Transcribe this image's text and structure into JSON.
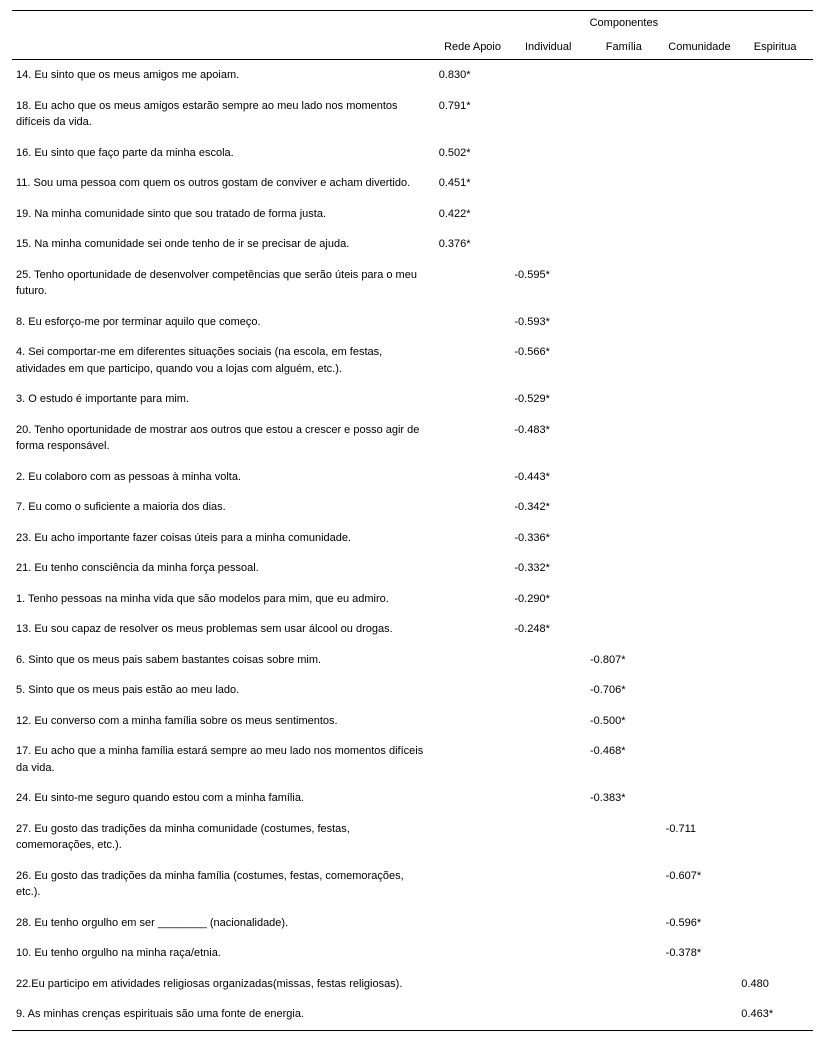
{
  "header": {
    "group_label": "Componentes",
    "columns": [
      "Rede Apoio",
      "Individual",
      "Família",
      "Comunidade",
      "Espiritua"
    ]
  },
  "rows": [
    {
      "item": "14. Eu sinto que os meus amigos me apoiam.",
      "c0": "0.830*",
      "c1": "",
      "c2": "",
      "c3": "",
      "c4": ""
    },
    {
      "item": "18. Eu acho que os meus amigos estarão sempre ao meu lado nos momentos difíceis da vida.",
      "c0": "0.791*",
      "c1": "",
      "c2": "",
      "c3": "",
      "c4": ""
    },
    {
      "item": "16. Eu sinto que faço parte da minha escola.",
      "c0": "0.502*",
      "c1": "",
      "c2": "",
      "c3": "",
      "c4": ""
    },
    {
      "item": "11. Sou uma pessoa com quem os outros gostam de conviver e acham divertido.",
      "c0": "0.451*",
      "c1": "",
      "c2": "",
      "c3": "",
      "c4": ""
    },
    {
      "item": "19. Na minha comunidade sinto que sou tratado de forma justa.",
      "c0": "0.422*",
      "c1": "",
      "c2": "",
      "c3": "",
      "c4": ""
    },
    {
      "item": "15. Na minha comunidade sei onde tenho de ir se precisar de ajuda.",
      "c0": "0.376*",
      "c1": "",
      "c2": "",
      "c3": "",
      "c4": ""
    },
    {
      "item": "25. Tenho oportunidade de desenvolver competências que serão úteis para o meu futuro.",
      "c0": "",
      "c1": "-0.595*",
      "c2": "",
      "c3": "",
      "c4": ""
    },
    {
      "item": "8. Eu esforço-me por terminar aquilo que começo.",
      "c0": "",
      "c1": "-0.593*",
      "c2": "",
      "c3": "",
      "c4": ""
    },
    {
      "item": "4. Sei comportar-me em diferentes situações sociais (na escola, em festas, atividades em que participo, quando vou a lojas com alguém, etc.).",
      "c0": "",
      "c1": "-0.566*",
      "c2": "",
      "c3": "",
      "c4": ""
    },
    {
      "item": "3. O estudo é importante para mim.",
      "c0": "",
      "c1": "-0.529*",
      "c2": "",
      "c3": "",
      "c4": ""
    },
    {
      "item": "20. Tenho oportunidade de mostrar aos outros que estou a crescer e posso agir de forma responsável.",
      "c0": "",
      "c1": "-0.483*",
      "c2": "",
      "c3": "",
      "c4": ""
    },
    {
      "item": "2. Eu colaboro com as pessoas à minha volta.",
      "c0": "",
      "c1": "-0.443*",
      "c2": "",
      "c3": "",
      "c4": ""
    },
    {
      "item": "7. Eu como o suficiente a maioria dos dias.",
      "c0": "",
      "c1": "-0.342*",
      "c2": "",
      "c3": "",
      "c4": ""
    },
    {
      "item": "23. Eu acho importante fazer coisas úteis para a minha comunidade.",
      "c0": "",
      "c1": "-0.336*",
      "c2": "",
      "c3": "",
      "c4": ""
    },
    {
      "item": "21. Eu tenho consciência da minha força pessoal.",
      "c0": "",
      "c1": "-0.332*",
      "c2": "",
      "c3": "",
      "c4": ""
    },
    {
      "item": "1. Tenho pessoas na minha vida que são modelos para mim, que eu admiro.",
      "c0": "",
      "c1": "-0.290*",
      "c2": "",
      "c3": "",
      "c4": ""
    },
    {
      "item": "13. Eu sou capaz de resolver os meus problemas sem usar álcool ou drogas.",
      "c0": "",
      "c1": "-0.248*",
      "c2": "",
      "c3": "",
      "c4": ""
    },
    {
      "item": "6. Sinto que os meus pais sabem bastantes coisas sobre mim.",
      "c0": "",
      "c1": "",
      "c2": "-0.807*",
      "c3": "",
      "c4": ""
    },
    {
      "item": "5. Sinto que os meus pais estão ao meu lado.",
      "c0": "",
      "c1": "",
      "c2": "-0.706*",
      "c3": "",
      "c4": ""
    },
    {
      "item": "12. Eu converso com a minha família sobre os meus sentimentos.",
      "c0": "",
      "c1": "",
      "c2": "-0.500*",
      "c3": "",
      "c4": ""
    },
    {
      "item": "17. Eu acho que a minha família estará sempre ao meu lado nos momentos difíceis da vida.",
      "c0": "",
      "c1": "",
      "c2": "-0.468*",
      "c3": "",
      "c4": ""
    },
    {
      "item": "24. Eu sinto-me seguro quando estou com a minha família.",
      "c0": "",
      "c1": "",
      "c2": "-0.383*",
      "c3": "",
      "c4": ""
    },
    {
      "item": "27. Eu gosto das tradições da minha comunidade (costumes, festas, comemorações, etc.).",
      "c0": "",
      "c1": "",
      "c2": "",
      "c3": "-0.711",
      "c4": ""
    },
    {
      "item": "26.  Eu gosto das tradições da minha família (costumes, festas, comemorações, etc.).",
      "c0": "",
      "c1": "",
      "c2": "",
      "c3": "-0.607*",
      "c4": ""
    },
    {
      "item": "28. Eu tenho orgulho em ser ________ (nacionalidade).",
      "c0": "",
      "c1": "",
      "c2": "",
      "c3": "-0.596*",
      "c4": ""
    },
    {
      "item": "10. Eu tenho orgulho na minha raça/etnia.",
      "c0": "",
      "c1": "",
      "c2": "",
      "c3": "-0.378*",
      "c4": ""
    },
    {
      "item": "22.Eu participo em atividades religiosas organizadas(missas, festas religiosas).",
      "c0": "",
      "c1": "",
      "c2": "",
      "c3": "",
      "c4": "0.480"
    },
    {
      "item": "9. As minhas crenças espirituais são uma fonte de energia.",
      "c0": "",
      "c1": "",
      "c2": "",
      "c3": "",
      "c4": "0.463*"
    }
  ],
  "styles": {
    "font_family": "Arial",
    "base_font_size_pt": 8,
    "text_color": "#000000",
    "background_color": "#ffffff",
    "border_color": "#000000"
  }
}
